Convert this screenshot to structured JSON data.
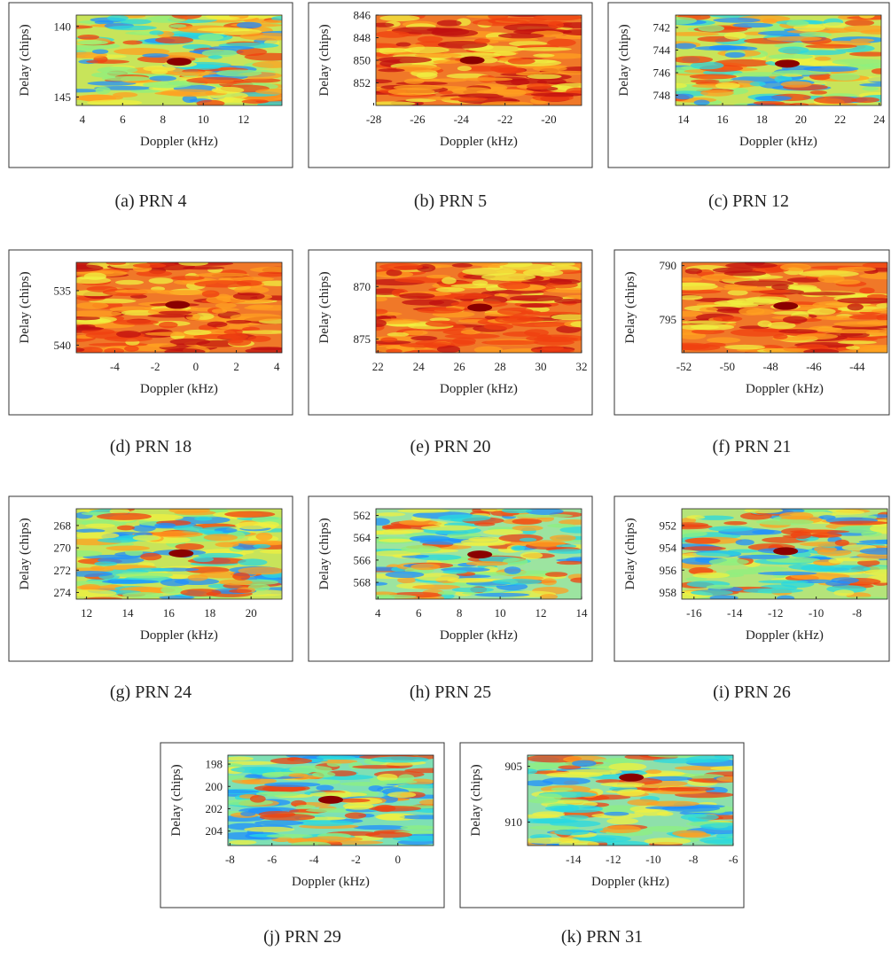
{
  "chart_data": [
    {
      "type": "heatmap",
      "colormap": "jet",
      "color": "#c8e45a",
      "caption": "(a) PRN 4",
      "xlabel": "Doppler (kHz)",
      "ylabel": "Delay (chips)",
      "xlim": [
        3.7,
        13.9
      ],
      "xticks": [
        4,
        6,
        8,
        10,
        12
      ],
      "ylim": [
        139.2,
        145.6
      ],
      "yticks": [
        140,
        145
      ],
      "y_inverted": true,
      "peak": {
        "x": 8.8,
        "y": 142.5
      }
    },
    {
      "type": "heatmap",
      "colormap": "jet",
      "color": "#f07828",
      "caption": "(b) PRN 5",
      "xlabel": "Doppler (kHz)",
      "ylabel": "Delay (chips)",
      "xlim": [
        -27.9,
        -18.5
      ],
      "xticks": [
        -28,
        -26,
        -24,
        -22,
        -20
      ],
      "ylim": [
        846,
        854
      ],
      "yticks": [
        846,
        848,
        850,
        852
      ],
      "y_inverted": true,
      "peak": {
        "x": -23.5,
        "y": 850
      }
    },
    {
      "type": "heatmap",
      "colormap": "jet",
      "color": "#c8e45a",
      "caption": "(c) PRN 12",
      "xlabel": "Doppler (kHz)",
      "ylabel": "Delay (chips)",
      "xlim": [
        13.6,
        24.1
      ],
      "xticks": [
        14,
        16,
        18,
        20,
        22,
        24
      ],
      "ylim": [
        740.9,
        748.9
      ],
      "yticks": [
        742,
        744,
        746,
        748
      ],
      "y_inverted": true,
      "peak": {
        "x": 19.3,
        "y": 745.2
      }
    },
    {
      "type": "heatmap",
      "colormap": "jet",
      "color": "#f07828",
      "caption": "(d) PRN 18",
      "xlabel": "Doppler (kHz)",
      "ylabel": "Delay (chips)",
      "xlim": [
        -5.9,
        4.25
      ],
      "xticks": [
        -4,
        -2,
        0,
        2,
        4
      ],
      "ylim": [
        532.4,
        540.7
      ],
      "yticks": [
        535,
        540
      ],
      "y_inverted": true,
      "peak": {
        "x": -0.9,
        "y": 536.3
      }
    },
    {
      "type": "heatmap",
      "colormap": "jet",
      "color": "#f07828",
      "caption": "(e) PRN 20",
      "xlabel": "Doppler (kHz)",
      "ylabel": "Delay (chips)",
      "xlim": [
        21.9,
        32
      ],
      "xticks": [
        22,
        24,
        26,
        28,
        30,
        32
      ],
      "ylim": [
        867.7,
        876.3
      ],
      "yticks": [
        870,
        875
      ],
      "y_inverted": true,
      "peak": {
        "x": 27,
        "y": 872
      }
    },
    {
      "type": "heatmap",
      "colormap": "jet",
      "color": "#f07828",
      "caption": "(f) PRN 21",
      "xlabel": "Doppler (kHz)",
      "ylabel": "Delay (chips)",
      "xlim": [
        -52.1,
        -42.6
      ],
      "xticks": [
        -52,
        -50,
        -48,
        -46,
        -44
      ],
      "ylim": [
        789.7,
        798.1
      ],
      "yticks": [
        790,
        795
      ],
      "y_inverted": true,
      "peak": {
        "x": -47.3,
        "y": 793.75
      }
    },
    {
      "type": "heatmap",
      "colormap": "jet",
      "color": "#c8e45a",
      "caption": "(g) PRN 24",
      "xlabel": "Doppler (kHz)",
      "ylabel": "Delay (chips)",
      "xlim": [
        11.5,
        21.5
      ],
      "xticks": [
        12,
        14,
        16,
        18,
        20
      ],
      "ylim": [
        266.5,
        274.6
      ],
      "yticks": [
        268,
        270,
        272,
        274
      ],
      "y_inverted": true,
      "peak": {
        "x": 16.6,
        "y": 270.5
      }
    },
    {
      "type": "heatmap",
      "colormap": "jet",
      "color": "#9ce4a0",
      "caption": "(h) PRN 25",
      "xlabel": "Doppler (kHz)",
      "ylabel": "Delay (chips)",
      "xlim": [
        3.9,
        14
      ],
      "xticks": [
        4,
        6,
        8,
        10,
        12,
        14
      ],
      "ylim": [
        561.4,
        569.5
      ],
      "yticks": [
        562,
        564,
        566,
        568
      ],
      "y_inverted": true,
      "peak": {
        "x": 9,
        "y": 565.5
      }
    },
    {
      "type": "heatmap",
      "colormap": "jet",
      "color": "#b4e47a",
      "caption": "(i) PRN 26",
      "xlabel": "Doppler (kHz)",
      "ylabel": "Delay (chips)",
      "xlim": [
        -16.6,
        -6.5
      ],
      "xticks": [
        -16,
        -14,
        -12,
        -10,
        -8
      ],
      "ylim": [
        950.5,
        958.6
      ],
      "yticks": [
        952,
        954,
        956,
        958
      ],
      "y_inverted": true,
      "peak": {
        "x": -11.5,
        "y": 954.3
      }
    },
    {
      "type": "heatmap",
      "colormap": "jet",
      "color": "#7ee0b4",
      "caption": "(j) PRN 29",
      "xlabel": "Doppler (kHz)",
      "ylabel": "Delay (chips)",
      "xlim": [
        -8.1,
        1.7
      ],
      "xticks": [
        -8,
        -6,
        -4,
        -2,
        0
      ],
      "ylim": [
        197.2,
        205.3
      ],
      "yticks": [
        198,
        200,
        202,
        204
      ],
      "y_inverted": true,
      "peak": {
        "x": -3.2,
        "y": 201.2
      }
    },
    {
      "type": "heatmap",
      "colormap": "jet",
      "color": "#8ee0aa",
      "caption": "(k) PRN 31",
      "xlabel": "Doppler (kHz)",
      "ylabel": "Delay (chips)",
      "xlim": [
        -16.3,
        -6
      ],
      "xticks": [
        -14,
        -12,
        -10,
        -8,
        -6
      ],
      "ylim": [
        904,
        912.1
      ],
      "yticks": [
        905,
        910
      ],
      "y_inverted": true,
      "peak": {
        "x": -11.1,
        "y": 906
      }
    }
  ]
}
